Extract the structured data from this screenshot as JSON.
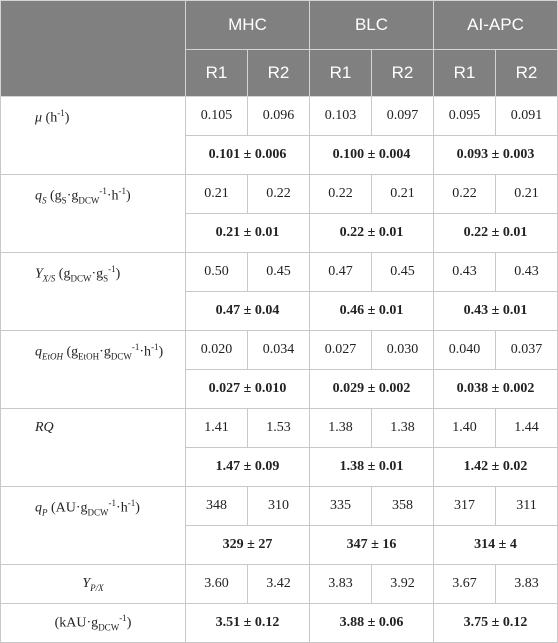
{
  "header": {
    "groups": [
      "MHC",
      "BLC",
      "AI-APC"
    ],
    "runs": [
      "R1",
      "R2",
      "R1",
      "R2",
      "R1",
      "R2"
    ]
  },
  "rows": [
    {
      "label": {
        "sym": "μ",
        "sub": "",
        "unit": "(h",
        "unit_sup": "-1",
        "unit_tail": ")"
      },
      "values": [
        "0.105",
        "0.096",
        "0.103",
        "0.097",
        "0.095",
        "0.091"
      ],
      "means": [
        "0.101 ± 0.006",
        "0.100 ± 0.004",
        "0.093 ± 0.003"
      ]
    },
    {
      "label": {
        "sym": "q",
        "sub": "S",
        "unit": "(g",
        "unit_sub1": "S",
        "unit_mid": "·g",
        "unit_sub2": "DCW",
        "unit_sup": "-1",
        "unit_tail": "·h",
        "unit_sup2": "-1",
        "unit_end": ")"
      },
      "values": [
        "0.21",
        "0.22",
        "0.22",
        "0.21",
        "0.22",
        "0.21"
      ],
      "means": [
        "0.21 ± 0.01",
        "0.22 ± 0.01",
        "0.22 ± 0.01"
      ]
    },
    {
      "label": {
        "sym": "Y",
        "sub": "X/S",
        "unit": "(g",
        "unit_sub1": "DCW",
        "unit_mid": "·g",
        "unit_sub2": "S",
        "unit_sup": "-1",
        "unit_end": ")"
      },
      "values": [
        "0.50",
        "0.45",
        "0.47",
        "0.45",
        "0.43",
        "0.43"
      ],
      "means": [
        "0.47 ± 0.04",
        "0.46 ± 0.01",
        "0.43 ± 0.01"
      ]
    },
    {
      "label": {
        "sym": "q",
        "sub": "EtOH",
        "unit": "(g",
        "unit_sub1": "EtOH",
        "unit_mid": "·g",
        "unit_sub2": "DCW",
        "unit_sup": "-1",
        "unit_tail": "·h",
        "unit_sup2": "-1",
        "unit_end": ")"
      },
      "values": [
        "0.020",
        "0.034",
        "0.027",
        "0.030",
        "0.040",
        "0.037"
      ],
      "means": [
        "0.027 ± 0.010",
        "0.029 ± 0.002",
        "0.038 ± 0.002"
      ]
    },
    {
      "label": {
        "sym": "RQ"
      },
      "values": [
        "1.41",
        "1.53",
        "1.38",
        "1.38",
        "1.40",
        "1.44"
      ],
      "means": [
        "1.47 ± 0.09",
        "1.38 ± 0.01",
        "1.42 ± 0.02"
      ]
    },
    {
      "label": {
        "sym": "q",
        "sub": "P",
        "unit": "(AU·g",
        "unit_sub1": "DCW",
        "unit_sup": "-1",
        "unit_tail": "·h",
        "unit_sup2": "-1",
        "unit_end": ")"
      },
      "values": [
        "348",
        "310",
        "335",
        "358",
        "317",
        "311"
      ],
      "means": [
        "329 ± 27",
        "347 ± 16",
        "314 ± 4"
      ]
    },
    {
      "label": {
        "sym": "Y",
        "sub": "P/X",
        "unit": "(kAU·g",
        "unit_sub1": "DCW",
        "unit_sup": "-1",
        "unit_end": ")"
      },
      "values": [
        "3.60",
        "3.42",
        "3.83",
        "3.92",
        "3.67",
        "3.83"
      ],
      "means": [
        "3.51 ± 0.12",
        "3.88 ± 0.06",
        "3.75 ± 0.12"
      ]
    }
  ]
}
